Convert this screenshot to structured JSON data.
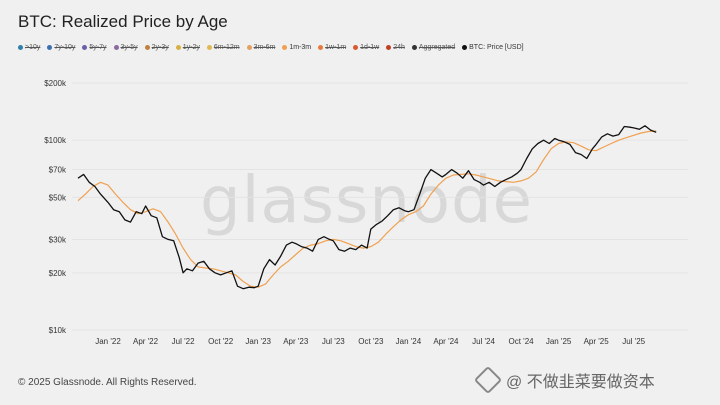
{
  "header": {
    "title": "BTC: Realized Price by Age"
  },
  "legend": [
    {
      "label": ">10y",
      "color": "#2f7fa8",
      "active": false
    },
    {
      "label": "7y-10y",
      "color": "#3a6fb0",
      "active": false
    },
    {
      "label": "5y-7y",
      "color": "#6a5fa8",
      "active": false
    },
    {
      "label": "3y-5y",
      "color": "#8a6aa0",
      "active": false
    },
    {
      "label": "2y-3y",
      "color": "#c08040",
      "active": false
    },
    {
      "label": "1y-2y",
      "color": "#d8b040",
      "active": false
    },
    {
      "label": "6m-12m",
      "color": "#e0b850",
      "active": false
    },
    {
      "label": "3m-6m",
      "color": "#e4a060",
      "active": false
    },
    {
      "label": "1m-3m",
      "color": "#f0a050",
      "active": true
    },
    {
      "label": "1w-1m",
      "color": "#e87a40",
      "active": false
    },
    {
      "label": "1d-1w",
      "color": "#d85a30",
      "active": false
    },
    {
      "label": "24h",
      "color": "#c04020",
      "active": false
    },
    {
      "label": "Aggregated",
      "color": "#333333",
      "active": false
    },
    {
      "label": "BTC: Price [USD]",
      "color": "#111111",
      "active": true
    }
  ],
  "watermark": "glassnode",
  "footer": {
    "copyright": "© 2025 Glassnode. All Rights Reserved.",
    "brand": "@ 不做韭菜要做资本"
  },
  "colors": {
    "price": "#111111",
    "realized_1m_3m": "#f0a050",
    "background": "#f0f0f0"
  },
  "chart_data": {
    "type": "line",
    "title": "BTC: Realized Price by Age",
    "y_scale": "log",
    "ylim": [
      10000,
      200000
    ],
    "y_ticks": [
      {
        "value": 10000,
        "label": "$10k"
      },
      {
        "value": 20000,
        "label": "$20k"
      },
      {
        "value": 30000,
        "label": "$30k"
      },
      {
        "value": 50000,
        "label": "$50k"
      },
      {
        "value": 70000,
        "label": "$70k"
      },
      {
        "value": 100000,
        "label": "$100k"
      },
      {
        "value": 200000,
        "label": "$200k"
      }
    ],
    "x_ticks": [
      "Jan '22",
      "Apr '22",
      "Jul '22",
      "Oct '22",
      "Jan '23",
      "Apr '23",
      "Jul '23",
      "Oct '23",
      "Jan '24",
      "Apr '24",
      "Jul '24",
      "Oct '24",
      "Jan '25",
      "Apr '25",
      "Jul '25"
    ],
    "x_start_index": -0.8,
    "x_end_index": 14.6,
    "series": [
      {
        "name": "BTC: Price [USD]",
        "color": "#111111",
        "points": [
          [
            -0.8,
            63000
          ],
          [
            -0.65,
            66000
          ],
          [
            -0.5,
            60000
          ],
          [
            -0.35,
            57000
          ],
          [
            -0.2,
            52000
          ],
          [
            0,
            47000
          ],
          [
            0.15,
            43000
          ],
          [
            0.3,
            42000
          ],
          [
            0.45,
            38000
          ],
          [
            0.6,
            37000
          ],
          [
            0.75,
            42000
          ],
          [
            0.9,
            41000
          ],
          [
            1.0,
            45000
          ],
          [
            1.15,
            40000
          ],
          [
            1.3,
            39000
          ],
          [
            1.45,
            31000
          ],
          [
            1.6,
            30000
          ],
          [
            1.75,
            29500
          ],
          [
            1.9,
            24000
          ],
          [
            2.0,
            20000
          ],
          [
            2.1,
            21000
          ],
          [
            2.25,
            20500
          ],
          [
            2.4,
            22500
          ],
          [
            2.55,
            23000
          ],
          [
            2.7,
            21000
          ],
          [
            2.85,
            20000
          ],
          [
            3.0,
            19500
          ],
          [
            3.15,
            20000
          ],
          [
            3.3,
            20500
          ],
          [
            3.45,
            17000
          ],
          [
            3.6,
            16500
          ],
          [
            3.75,
            16800
          ],
          [
            3.9,
            16700
          ],
          [
            4.0,
            17000
          ],
          [
            4.15,
            21000
          ],
          [
            4.3,
            23500
          ],
          [
            4.45,
            22000
          ],
          [
            4.6,
            24500
          ],
          [
            4.75,
            28000
          ],
          [
            4.9,
            29000
          ],
          [
            5.0,
            28500
          ],
          [
            5.15,
            27500
          ],
          [
            5.3,
            27000
          ],
          [
            5.45,
            26000
          ],
          [
            5.6,
            30000
          ],
          [
            5.75,
            31000
          ],
          [
            5.9,
            30000
          ],
          [
            6.0,
            29500
          ],
          [
            6.15,
            26500
          ],
          [
            6.3,
            26000
          ],
          [
            6.45,
            27000
          ],
          [
            6.6,
            26500
          ],
          [
            6.75,
            28000
          ],
          [
            6.9,
            27000
          ],
          [
            7.0,
            34000
          ],
          [
            7.15,
            36000
          ],
          [
            7.3,
            37500
          ],
          [
            7.45,
            40000
          ],
          [
            7.6,
            43000
          ],
          [
            7.75,
            44000
          ],
          [
            7.9,
            42500
          ],
          [
            8.0,
            42000
          ],
          [
            8.15,
            43000
          ],
          [
            8.3,
            52000
          ],
          [
            8.45,
            63000
          ],
          [
            8.6,
            70000
          ],
          [
            8.75,
            67000
          ],
          [
            8.9,
            64000
          ],
          [
            9.0,
            66000
          ],
          [
            9.15,
            70000
          ],
          [
            9.3,
            67000
          ],
          [
            9.45,
            63000
          ],
          [
            9.6,
            69000
          ],
          [
            9.75,
            62000
          ],
          [
            9.9,
            60000
          ],
          [
            10.0,
            58000
          ],
          [
            10.15,
            60000
          ],
          [
            10.3,
            57000
          ],
          [
            10.45,
            60000
          ],
          [
            10.6,
            62000
          ],
          [
            10.75,
            64000
          ],
          [
            10.9,
            67000
          ],
          [
            11.0,
            70000
          ],
          [
            11.15,
            80000
          ],
          [
            11.3,
            90000
          ],
          [
            11.45,
            96000
          ],
          [
            11.6,
            100000
          ],
          [
            11.75,
            96000
          ],
          [
            11.9,
            102000
          ],
          [
            12.0,
            100000
          ],
          [
            12.15,
            98000
          ],
          [
            12.3,
            95000
          ],
          [
            12.45,
            86000
          ],
          [
            12.6,
            84000
          ],
          [
            12.75,
            80000
          ],
          [
            12.9,
            90000
          ],
          [
            13.0,
            95000
          ],
          [
            13.15,
            104000
          ],
          [
            13.3,
            108000
          ],
          [
            13.45,
            105000
          ],
          [
            13.6,
            107000
          ],
          [
            13.75,
            118000
          ],
          [
            13.9,
            117000
          ],
          [
            14.0,
            116000
          ],
          [
            14.15,
            114000
          ],
          [
            14.3,
            119000
          ],
          [
            14.45,
            113000
          ],
          [
            14.6,
            110000
          ]
        ]
      },
      {
        "name": "1m-3m",
        "color": "#f0a050",
        "points": [
          [
            -0.8,
            48000
          ],
          [
            -0.6,
            52000
          ],
          [
            -0.4,
            57000
          ],
          [
            -0.2,
            60000
          ],
          [
            0,
            58000
          ],
          [
            0.2,
            52000
          ],
          [
            0.4,
            47000
          ],
          [
            0.6,
            43000
          ],
          [
            0.8,
            41000
          ],
          [
            1.0,
            42000
          ],
          [
            1.2,
            43500
          ],
          [
            1.4,
            42000
          ],
          [
            1.6,
            37000
          ],
          [
            1.8,
            32000
          ],
          [
            2.0,
            27000
          ],
          [
            2.2,
            23500
          ],
          [
            2.4,
            21500
          ],
          [
            2.6,
            21200
          ],
          [
            2.8,
            21000
          ],
          [
            3.0,
            20500
          ],
          [
            3.2,
            20000
          ],
          [
            3.4,
            19500
          ],
          [
            3.6,
            18000
          ],
          [
            3.8,
            17000
          ],
          [
            4.0,
            16800
          ],
          [
            4.2,
            17500
          ],
          [
            4.4,
            19500
          ],
          [
            4.6,
            21500
          ],
          [
            4.8,
            23000
          ],
          [
            5.0,
            25000
          ],
          [
            5.2,
            27000
          ],
          [
            5.4,
            28000
          ],
          [
            5.6,
            28500
          ],
          [
            5.8,
            29500
          ],
          [
            6.0,
            30000
          ],
          [
            6.2,
            29500
          ],
          [
            6.4,
            28500
          ],
          [
            6.6,
            27500
          ],
          [
            6.8,
            27000
          ],
          [
            7.0,
            27500
          ],
          [
            7.2,
            29000
          ],
          [
            7.4,
            32000
          ],
          [
            7.6,
            35000
          ],
          [
            7.8,
            38000
          ],
          [
            8.0,
            40500
          ],
          [
            8.2,
            42000
          ],
          [
            8.4,
            45000
          ],
          [
            8.6,
            52000
          ],
          [
            8.8,
            58000
          ],
          [
            9.0,
            63000
          ],
          [
            9.2,
            65500
          ],
          [
            9.4,
            66000
          ],
          [
            9.6,
            66500
          ],
          [
            9.8,
            65500
          ],
          [
            10.0,
            64000
          ],
          [
            10.2,
            62500
          ],
          [
            10.4,
            61000
          ],
          [
            10.6,
            60500
          ],
          [
            10.8,
            60000
          ],
          [
            11.0,
            61000
          ],
          [
            11.2,
            63000
          ],
          [
            11.4,
            68000
          ],
          [
            11.6,
            79000
          ],
          [
            11.8,
            90000
          ],
          [
            12.0,
            96000
          ],
          [
            12.2,
            98000
          ],
          [
            12.4,
            97000
          ],
          [
            12.6,
            93000
          ],
          [
            12.8,
            89000
          ],
          [
            13.0,
            88000
          ],
          [
            13.2,
            92000
          ],
          [
            13.4,
            96000
          ],
          [
            13.6,
            100000
          ],
          [
            13.8,
            103000
          ],
          [
            14.0,
            106000
          ],
          [
            14.2,
            109000
          ],
          [
            14.4,
            111000
          ],
          [
            14.6,
            112000
          ]
        ]
      }
    ]
  }
}
